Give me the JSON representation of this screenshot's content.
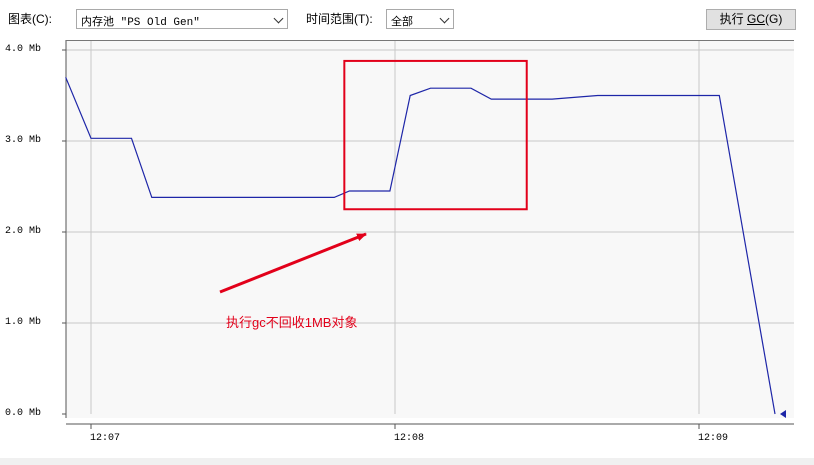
{
  "toolbar": {
    "chart_label": "图表(C):",
    "chart_select": "内存池 \"PS Old Gen\"",
    "range_label": "时间范围(T):",
    "range_select": "全部",
    "gc_button": {
      "prefix": "执行 ",
      "mnemonic": "GC",
      "suffix": "(G)"
    }
  },
  "annotation": {
    "text": "执行gc不回收1MB对象",
    "color": "#e2001a"
  },
  "colors": {
    "series": "#1e26a8",
    "highlight_box": "#e2001a",
    "grid": "#c8c8c8"
  },
  "chart_data": {
    "type": "line",
    "y_tick_labels": [
      "4.0 Mb",
      "3.0 Mb",
      "2.0 Mb",
      "1.0 Mb",
      "0.0 Mb"
    ],
    "y_ticks": [
      4.0,
      3.0,
      2.0,
      1.0,
      0.0
    ],
    "x_tick_labels": [
      "12:07",
      "12:08",
      "12:09"
    ],
    "ylim": [
      0,
      4.0
    ],
    "grid": true,
    "series": [
      {
        "x": [
          "12:06:55",
          "12:07:00",
          "12:07:08",
          "12:07:12",
          "12:07:48",
          "12:07:51",
          "12:07:59",
          "12:08:03",
          "12:08:07",
          "12:08:15",
          "12:08:19",
          "12:08:31",
          "12:08:40",
          "12:09:04",
          "12:09:15"
        ],
        "values": [
          3.7,
          3.03,
          3.03,
          2.38,
          2.38,
          2.45,
          2.45,
          3.5,
          3.58,
          3.58,
          3.46,
          3.46,
          3.5,
          3.5,
          0.0
        ]
      }
    ],
    "highlight_region": {
      "x": [
        "12:07:50",
        "12:08:26"
      ],
      "y": [
        2.25,
        3.88
      ]
    }
  }
}
